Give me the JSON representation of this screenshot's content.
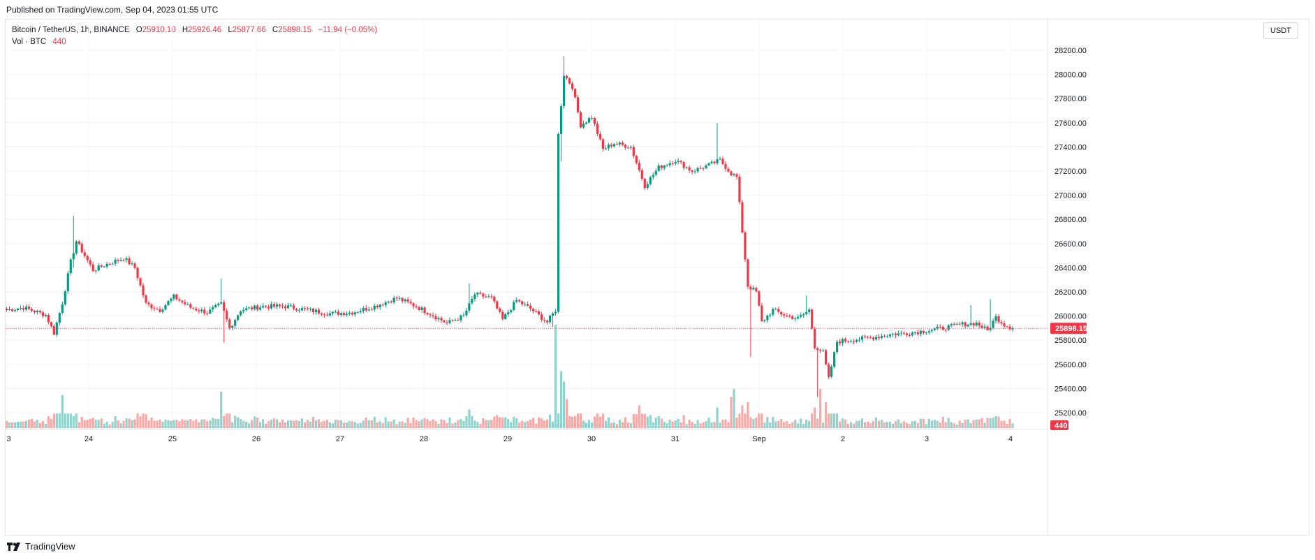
{
  "header": {
    "published": "Published on TradingView.com, Sep 04, 2023 01:55 UTC"
  },
  "legend": {
    "symbol": "Bitcoin / TetherUS, 1h, BINANCE",
    "o_label": "O",
    "o_value": "25910.10",
    "h_label": "H",
    "h_value": "25926.46",
    "l_label": "L",
    "l_value": "25877.66",
    "c_label": "C",
    "c_value": "25898.15",
    "change": "−11.94 (−0.05%)",
    "vol_label": "Vol · BTC",
    "vol_value": "440"
  },
  "currency_button": "USDT",
  "footer": {
    "brand": "TradingView"
  },
  "colors": {
    "up": "#089981",
    "down": "#f23645",
    "up_vol": "#92d2cc",
    "down_vol": "#f7a9a7",
    "grid": "#f0f3fa"
  },
  "chart_data": {
    "type": "candlestick",
    "price_tick_labels": [
      "28200.00",
      "28000.00",
      "27800.00",
      "27600.00",
      "27400.00",
      "27200.00",
      "27000.00",
      "26800.00",
      "26600.00",
      "26400.00",
      "26200.00",
      "26000.00",
      "25800.00",
      "25600.00",
      "25400.00",
      "25200.00"
    ],
    "ylim": [
      25100,
      28350
    ],
    "x_tick_labels": [
      "3",
      "24",
      "25",
      "26",
      "27",
      "28",
      "29",
      "30",
      "31",
      "Sep",
      "2",
      "3",
      "4"
    ],
    "last_price_label": "25898.15",
    "last_price": 25898.15,
    "last_volume_label": "440",
    "anchors": [
      {
        "t": 0,
        "p": 26050
      },
      {
        "t": 6,
        "p": 26070
      },
      {
        "t": 14,
        "p": 26010
      },
      {
        "t": 17,
        "p": 25860
      },
      {
        "t": 20,
        "p": 26110
      },
      {
        "t": 23,
        "p": 26450
      },
      {
        "t": 25,
        "p": 26620
      },
      {
        "t": 28,
        "p": 26500
      },
      {
        "t": 31,
        "p": 26380
      },
      {
        "t": 36,
        "p": 26430
      },
      {
        "t": 42,
        "p": 26480
      },
      {
        "t": 46,
        "p": 26400
      },
      {
        "t": 50,
        "p": 26100
      },
      {
        "t": 55,
        "p": 26050
      },
      {
        "t": 60,
        "p": 26160
      },
      {
        "t": 66,
        "p": 26070
      },
      {
        "t": 72,
        "p": 26030
      },
      {
        "t": 77,
        "p": 26100
      },
      {
        "t": 80,
        "p": 25900
      },
      {
        "t": 84,
        "p": 26050
      },
      {
        "t": 92,
        "p": 26080
      },
      {
        "t": 100,
        "p": 26080
      },
      {
        "t": 108,
        "p": 26050
      },
      {
        "t": 116,
        "p": 26020
      },
      {
        "t": 124,
        "p": 26030
      },
      {
        "t": 132,
        "p": 26080
      },
      {
        "t": 140,
        "p": 26150
      },
      {
        "t": 146,
        "p": 26090
      },
      {
        "t": 152,
        "p": 26020
      },
      {
        "t": 158,
        "p": 25940
      },
      {
        "t": 164,
        "p": 26000
      },
      {
        "t": 168,
        "p": 26180
      },
      {
        "t": 174,
        "p": 26150
      },
      {
        "t": 178,
        "p": 25970
      },
      {
        "t": 183,
        "p": 26130
      },
      {
        "t": 188,
        "p": 26060
      },
      {
        "t": 194,
        "p": 25950
      },
      {
        "t": 197,
        "p": 26050
      },
      {
        "t": 198,
        "p": 27500
      },
      {
        "t": 200,
        "p": 28000
      },
      {
        "t": 203,
        "p": 27900
      },
      {
        "t": 206,
        "p": 27580
      },
      {
        "t": 210,
        "p": 27650
      },
      {
        "t": 214,
        "p": 27380
      },
      {
        "t": 218,
        "p": 27430
      },
      {
        "t": 224,
        "p": 27400
      },
      {
        "t": 229,
        "p": 27080
      },
      {
        "t": 234,
        "p": 27230
      },
      {
        "t": 240,
        "p": 27290
      },
      {
        "t": 246,
        "p": 27200
      },
      {
        "t": 252,
        "p": 27250
      },
      {
        "t": 256,
        "p": 27290
      },
      {
        "t": 260,
        "p": 27180
      },
      {
        "t": 262,
        "p": 27150
      },
      {
        "t": 264,
        "p": 26700
      },
      {
        "t": 266,
        "p": 26250
      },
      {
        "t": 269,
        "p": 26200
      },
      {
        "t": 271,
        "p": 25950
      },
      {
        "t": 275,
        "p": 26050
      },
      {
        "t": 280,
        "p": 26000
      },
      {
        "t": 284,
        "p": 25980
      },
      {
        "t": 288,
        "p": 26050
      },
      {
        "t": 290,
        "p": 25750
      },
      {
        "t": 293,
        "p": 25700
      },
      {
        "t": 295,
        "p": 25480
      },
      {
        "t": 298,
        "p": 25790
      },
      {
        "t": 302,
        "p": 25800
      },
      {
        "t": 310,
        "p": 25820
      },
      {
        "t": 318,
        "p": 25850
      },
      {
        "t": 324,
        "p": 25860
      },
      {
        "t": 330,
        "p": 25880
      },
      {
        "t": 336,
        "p": 25900
      },
      {
        "t": 342,
        "p": 25930
      },
      {
        "t": 348,
        "p": 25940
      },
      {
        "t": 352,
        "p": 25880
      },
      {
        "t": 355,
        "p": 25990
      },
      {
        "t": 358,
        "p": 25930
      },
      {
        "t": 361,
        "p": 25898
      }
    ],
    "spikes": [
      {
        "t": 24,
        "type": "high",
        "p": 26830
      },
      {
        "t": 24,
        "type": "low",
        "p": 26400
      },
      {
        "t": 77,
        "type": "high",
        "p": 26310
      },
      {
        "t": 78,
        "type": "low",
        "p": 25780
      },
      {
        "t": 166,
        "type": "high",
        "p": 26270
      },
      {
        "t": 200,
        "type": "high",
        "p": 28150
      },
      {
        "t": 199,
        "type": "low",
        "p": 27280
      },
      {
        "t": 255,
        "type": "high",
        "p": 27600
      },
      {
        "t": 267,
        "type": "low",
        "p": 25660
      },
      {
        "t": 291,
        "type": "low",
        "p": 25330
      },
      {
        "t": 287,
        "type": "high",
        "p": 26170
      },
      {
        "t": 353,
        "type": "high",
        "p": 26140
      },
      {
        "t": 346,
        "type": "high",
        "p": 26090
      },
      {
        "t": 196,
        "type": "low",
        "p": 25910
      }
    ],
    "volume_spikes": [
      {
        "t": 20,
        "v": 0.32
      },
      {
        "t": 77,
        "v": 0.35
      },
      {
        "t": 197,
        "v": 1.0
      },
      {
        "t": 199,
        "v": 0.55
      },
      {
        "t": 200,
        "v": 0.45
      },
      {
        "t": 201,
        "v": 0.28
      },
      {
        "t": 227,
        "v": 0.22
      },
      {
        "t": 255,
        "v": 0.2
      },
      {
        "t": 260,
        "v": 0.3
      },
      {
        "t": 261,
        "v": 0.38
      },
      {
        "t": 264,
        "v": 0.22
      },
      {
        "t": 266,
        "v": 0.25
      },
      {
        "t": 290,
        "v": 0.2
      },
      {
        "t": 292,
        "v": 0.38
      },
      {
        "t": 294,
        "v": 0.25
      },
      {
        "t": 166,
        "v": 0.18
      }
    ],
    "n_candles": 362,
    "title": "",
    "xlabel": "",
    "ylabel": ""
  }
}
